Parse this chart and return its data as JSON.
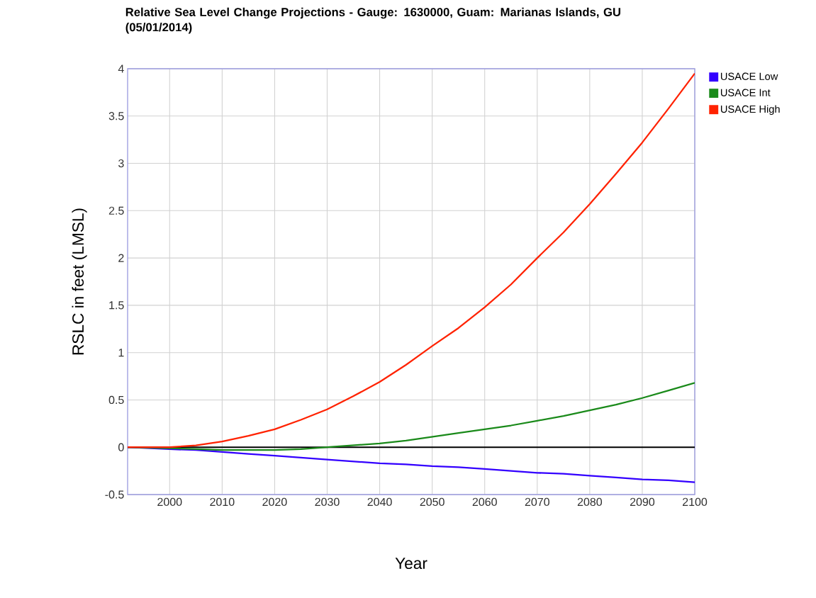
{
  "chart_data": {
    "type": "line",
    "title": "Relative Sea Level Change Projections - Gauge: 1630000, Guam: Marianas Islands, GU (05/01/2014)",
    "xlabel": "Year",
    "ylabel": "RSLC in feet (LMSL)",
    "x": [
      1992,
      2000,
      2005,
      2010,
      2015,
      2020,
      2025,
      2030,
      2035,
      2040,
      2045,
      2050,
      2055,
      2060,
      2065,
      2070,
      2075,
      2080,
      2085,
      2090,
      2095,
      2100
    ],
    "series": [
      {
        "name": "USACE Low",
        "color": "#3300ff",
        "values": [
          0,
          -0.02,
          -0.03,
          -0.05,
          -0.07,
          -0.09,
          -0.11,
          -0.13,
          -0.15,
          -0.17,
          -0.18,
          -0.2,
          -0.21,
          -0.23,
          -0.25,
          -0.27,
          -0.28,
          -0.3,
          -0.32,
          -0.34,
          -0.35,
          -0.37
        ]
      },
      {
        "name": "USACE Int",
        "color": "#1a8a1a",
        "values": [
          0,
          -0.01,
          -0.02,
          -0.03,
          -0.03,
          -0.03,
          -0.02,
          0.0,
          0.02,
          0.04,
          0.07,
          0.11,
          0.15,
          0.19,
          0.23,
          0.28,
          0.33,
          0.39,
          0.45,
          0.52,
          0.6,
          0.68
        ]
      },
      {
        "name": "USACE High",
        "color": "#ff2200",
        "values": [
          0,
          0.0,
          0.02,
          0.06,
          0.12,
          0.19,
          0.29,
          0.4,
          0.54,
          0.69,
          0.87,
          1.07,
          1.26,
          1.48,
          1.72,
          2.0,
          2.27,
          2.57,
          2.89,
          3.22,
          3.58,
          3.95
        ]
      }
    ],
    "xlim": [
      1992,
      2100
    ],
    "xticks": [
      2000,
      2010,
      2020,
      2030,
      2040,
      2050,
      2060,
      2070,
      2080,
      2090,
      2100
    ],
    "ylim": [
      -0.5,
      4
    ],
    "yticks": [
      -0.5,
      0,
      0.5,
      1,
      1.5,
      2,
      2.5,
      3,
      3.5,
      4
    ],
    "ref_lines": [
      {
        "axis": "y",
        "value": 0,
        "color": "#000000"
      }
    ],
    "grid": true,
    "legend": "top right",
    "marker": "none",
    "line_style": "solid"
  }
}
